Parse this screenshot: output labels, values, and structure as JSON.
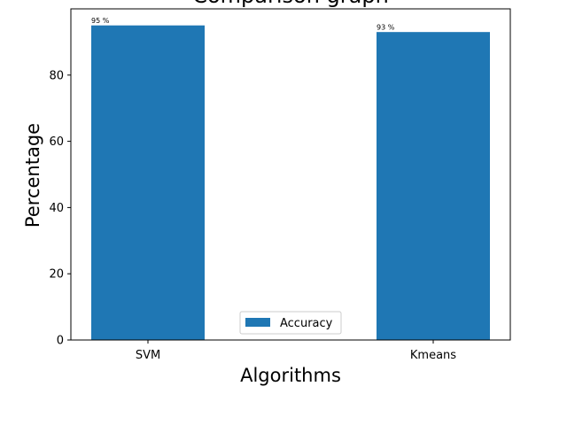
{
  "chart_data": {
    "type": "bar",
    "title": "Comparison graph",
    "xlabel": "Algorithms",
    "ylabel": "Percentage",
    "categories": [
      "SVM",
      "Kmeans"
    ],
    "series": [
      {
        "name": "Accuracy",
        "values": [
          95,
          93
        ],
        "color": "#1f77b4"
      }
    ],
    "data_labels": [
      "95 %",
      "93 %"
    ],
    "ylim": [
      0,
      100
    ],
    "yticks": [
      0,
      20,
      40,
      60,
      80
    ],
    "grid": false,
    "legend": "lower center"
  }
}
